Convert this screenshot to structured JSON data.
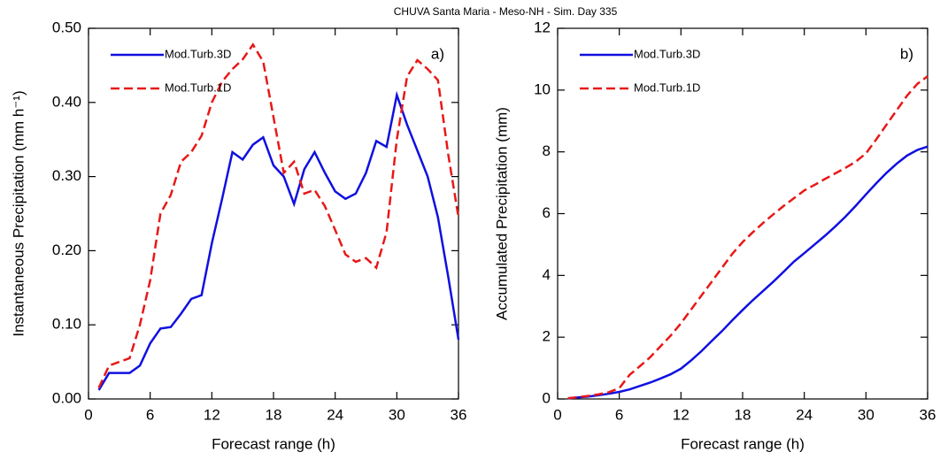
{
  "title": "CHUVA Santa Maria - Meso-NH - Sim. Day 335",
  "chart_data": [
    {
      "type": "line",
      "annotation": "a)",
      "xlabel": "Forecast range (h)",
      "ylabel": "Instantaneous Precipitation (mm h⁻¹)",
      "xlim": [
        0,
        36
      ],
      "xticks": [
        0,
        6,
        12,
        18,
        24,
        30,
        36
      ],
      "ylim": [
        0,
        0.5
      ],
      "yticks": [
        {
          "value": 0,
          "label": "0.00"
        },
        {
          "value": 0.1,
          "label": "0.10"
        },
        {
          "value": 0.2,
          "label": "0.20"
        },
        {
          "value": 0.3,
          "label": "0.30"
        },
        {
          "value": 0.4,
          "label": "0.40"
        },
        {
          "value": 0.5,
          "label": "0.50"
        }
      ],
      "legend": "upper left",
      "x": [
        1,
        2,
        3,
        4,
        5,
        6,
        7,
        8,
        9,
        10,
        11,
        12,
        13,
        14,
        15,
        16,
        17,
        18,
        19,
        20,
        21,
        22,
        23,
        24,
        25,
        26,
        27,
        28,
        29,
        30,
        31,
        32,
        33,
        34,
        35,
        36
      ],
      "series": [
        {
          "name": "Mod.Turb.3D",
          "color": "#1010e0",
          "dashed": false,
          "values": [
            0.012,
            0.035,
            0.035,
            0.035,
            0.045,
            0.075,
            0.095,
            0.097,
            0.115,
            0.135,
            0.14,
            0.21,
            0.27,
            0.333,
            0.323,
            0.343,
            0.353,
            0.315,
            0.3,
            0.263,
            0.31,
            0.333,
            0.305,
            0.28,
            0.27,
            0.277,
            0.305,
            0.348,
            0.34,
            0.41,
            0.37,
            0.335,
            0.3,
            0.245,
            0.165,
            0.08
          ]
        },
        {
          "name": "Mod.Turb.1D",
          "color": "#e81818",
          "dashed": true,
          "values": [
            0.015,
            0.045,
            0.05,
            0.055,
            0.1,
            0.16,
            0.25,
            0.275,
            0.32,
            0.333,
            0.355,
            0.4,
            0.428,
            0.445,
            0.458,
            0.478,
            0.455,
            0.38,
            0.305,
            0.32,
            0.277,
            0.282,
            0.26,
            0.228,
            0.195,
            0.185,
            0.19,
            0.177,
            0.225,
            0.35,
            0.435,
            0.457,
            0.445,
            0.43,
            0.33,
            0.245
          ]
        }
      ]
    },
    {
      "type": "line",
      "annotation": "b)",
      "xlabel": "Forecast range (h)",
      "ylabel": "Accumulated Precipitation (mm)",
      "xlim": [
        0,
        36
      ],
      "xticks": [
        0,
        6,
        12,
        18,
        24,
        30,
        36
      ],
      "ylim": [
        0,
        12
      ],
      "yticks": [
        0,
        2,
        4,
        6,
        8,
        10,
        12
      ],
      "legend": "upper left",
      "x": [
        1,
        2,
        3,
        4,
        5,
        6,
        7,
        8,
        9,
        10,
        11,
        12,
        13,
        14,
        15,
        16,
        17,
        18,
        19,
        20,
        21,
        22,
        23,
        24,
        25,
        26,
        27,
        28,
        29,
        30,
        31,
        32,
        33,
        34,
        35,
        36
      ],
      "series": [
        {
          "name": "Mod.Turb.3D",
          "color": "#1010e0",
          "dashed": false,
          "values": [
            0.02,
            0.05,
            0.08,
            0.12,
            0.17,
            0.23,
            0.31,
            0.42,
            0.53,
            0.66,
            0.8,
            0.98,
            1.25,
            1.55,
            1.88,
            2.2,
            2.55,
            2.88,
            3.2,
            3.5,
            3.8,
            4.12,
            4.45,
            4.72,
            5,
            5.28,
            5.58,
            5.9,
            6.25,
            6.62,
            6.98,
            7.32,
            7.62,
            7.88,
            8.06,
            8.17
          ]
        },
        {
          "name": "Mod.Turb.1D",
          "color": "#e81818",
          "dashed": true,
          "values": [
            0.02,
            0.06,
            0.1,
            0.15,
            0.22,
            0.35,
            0.78,
            1.06,
            1.35,
            1.7,
            2.05,
            2.45,
            2.9,
            3.35,
            3.8,
            4.25,
            4.7,
            5.08,
            5.4,
            5.7,
            5.98,
            6.25,
            6.5,
            6.75,
            6.93,
            7.12,
            7.3,
            7.48,
            7.68,
            7.95,
            8.4,
            8.88,
            9.35,
            9.82,
            10.2,
            10.45
          ]
        }
      ]
    }
  ]
}
